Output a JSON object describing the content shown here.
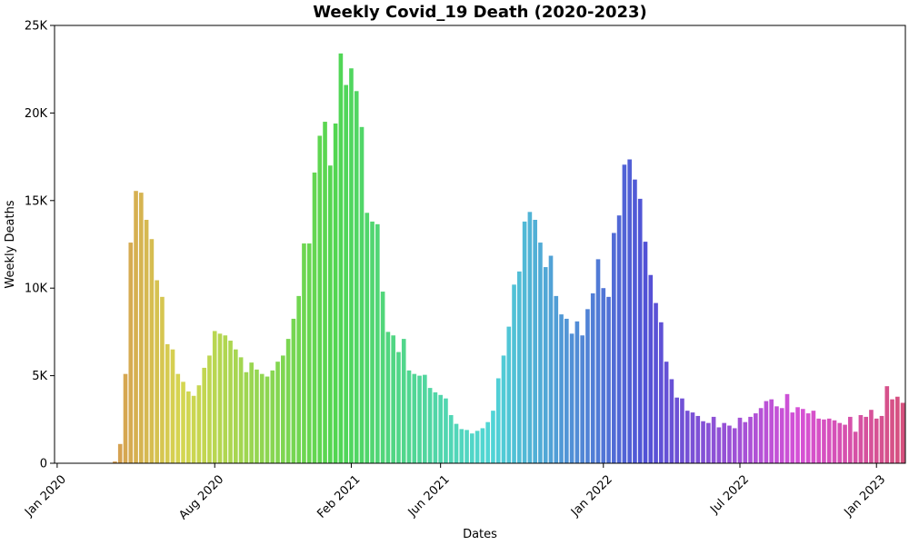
{
  "chart_data": {
    "type": "bar",
    "title": "Weekly Covid_19 Death (2020-2023)",
    "xlabel": "Dates",
    "ylabel": "Weekly Deaths",
    "ylim": [
      0,
      25000
    ],
    "y_ticks": [
      {
        "value": 0,
        "label": "0"
      },
      {
        "value": 5000,
        "label": "5K"
      },
      {
        "value": 10000,
        "label": "10K"
      },
      {
        "value": 15000,
        "label": "15K"
      },
      {
        "value": 20000,
        "label": "20K"
      },
      {
        "value": 25000,
        "label": "25K"
      }
    ],
    "x_ticks": [
      {
        "date": "2020-01-05",
        "label": "Jan 2020"
      },
      {
        "date": "2020-08-02",
        "label": "Aug 2020"
      },
      {
        "date": "2021-01-31",
        "label": "Feb 2021"
      },
      {
        "date": "2021-05-30",
        "label": "Jun 2021"
      },
      {
        "date": "2022-01-02",
        "label": "Jan 2022"
      },
      {
        "date": "2022-07-03",
        "label": "Jul 2022"
      },
      {
        "date": "2023-01-01",
        "label": "Jan 2023"
      }
    ],
    "grid": false,
    "start_date": "2020-01-05",
    "week_step_days": 7,
    "values": [
      0,
      0,
      0,
      0,
      0,
      0,
      0,
      0,
      0,
      0,
      0,
      100,
      1100,
      5100,
      12600,
      15550,
      15450,
      13900,
      12800,
      10450,
      9500,
      6800,
      6500,
      5100,
      4650,
      4100,
      3850,
      4450,
      5450,
      6150,
      7550,
      7400,
      7300,
      7000,
      6500,
      6050,
      5200,
      5750,
      5350,
      5100,
      4950,
      5300,
      5800,
      6150,
      7100,
      8250,
      9550,
      12550,
      12550,
      16600,
      18700,
      19500,
      17000,
      19400,
      23400,
      21600,
      22550,
      21250,
      19200,
      14300,
      13800,
      13650,
      9800,
      7500,
      7300,
      6350,
      7100,
      5300,
      5100,
      5000,
      5050,
      4300,
      4050,
      3900,
      3700,
      2750,
      2250,
      1950,
      1900,
      1700,
      1850,
      2000,
      2350,
      3000,
      4850,
      6150,
      7800,
      10200,
      10950,
      13800,
      14350,
      13900,
      12600,
      11200,
      11850,
      9550,
      8500,
      8250,
      7400,
      8100,
      7300,
      8800,
      9700,
      11650,
      10000,
      9500,
      13150,
      14150,
      17050,
      17350,
      16200,
      15100,
      12650,
      10750,
      9150,
      8050,
      5800,
      4800,
      3750,
      3700,
      3000,
      2900,
      2700,
      2400,
      2300,
      2650,
      2050,
      2300,
      2150,
      2000,
      2600,
      2350,
      2650,
      2850,
      3150,
      3550,
      3650,
      3250,
      3150,
      3950,
      2900,
      3200,
      3100,
      2850,
      3000,
      2550,
      2500,
      2550,
      2450,
      2300,
      2200,
      2650,
      1800,
      2750,
      2650,
      3050,
      2550,
      2700,
      4400,
      3650,
      3800,
      3450
    ]
  }
}
